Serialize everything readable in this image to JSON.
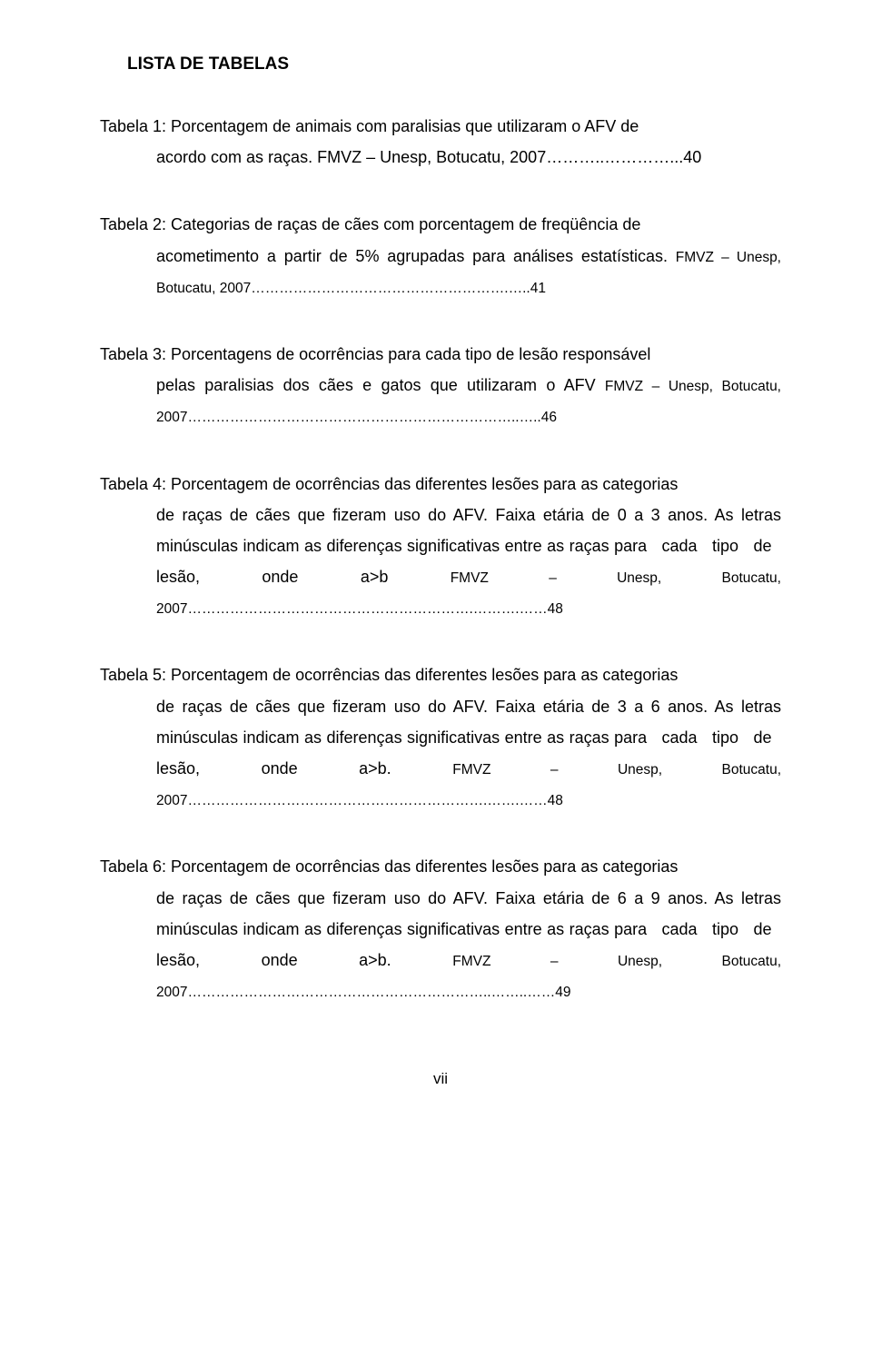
{
  "title": "LISTA DE TABELAS",
  "entries": {
    "t1": {
      "first": "Tabela 1: Porcentagem de animais com paralisias que utilizaram o AFV de",
      "cont": "acordo com as raças. FMVZ – Unesp, Botucatu, 2007………..…………...40"
    },
    "t2": {
      "first": "Tabela 2: Categorias de raças de cães com porcentagem de freqüência de",
      "cont_a": "acometimento a partir de 5% agrupadas para análises estatísticas.",
      "cont_b": "FMVZ – Unesp, Botucatu, 2007……………………………………………….…..41"
    },
    "t3": {
      "first": "Tabela 3: Porcentagens de ocorrências para cada tipo de lesão responsável",
      "cont_a": "pelas paralisias dos cães e gatos que utilizaram o AFV ",
      "cont_b": "FMVZ – Unesp, Botucatu, 2007……………………………………………………………..…..46"
    },
    "t4": {
      "first": "Tabela 4: Porcentagem de ocorrências das diferentes lesões para as categorias",
      "cont_a": "de raças de cães que fizeram uso do AFV. Faixa etária de 0 a 3 anos. As letras minúsculas indicam as diferenças significativas entre as raças para   cada   tipo   de   lesão,   onde   a>b   ",
      "cont_b": "FMVZ   –   Unesp,   Botucatu, 2007…………………………………………………….……….……48"
    },
    "t5": {
      "first": "Tabela 5: Porcentagem de ocorrências das diferentes lesões para as categorias",
      "cont_a": "de raças de cães que fizeram uso do AFV. Faixa etária de 3 a 6 anos. As letras minúsculas indicam as diferenças significativas entre as raças para   cada   tipo   de   lesão,   onde   a>b.   ",
      "cont_b": "FMVZ   –   Unesp,   Botucatu, 2007……………………………………………………….…….……48"
    },
    "t6": {
      "first": "Tabela 6: Porcentagem de ocorrências das diferentes lesões para as categorias",
      "cont_a": "de raças de cães que fizeram uso do AFV. Faixa etária de 6 a 9 anos. As letras minúsculas indicam as diferenças significativas entre as raças para   cada   tipo   de   lesão,   onde   a>b.   ",
      "cont_b": "FMVZ   –   Unesp,   Botucatu, 2007………………………………………………………..……..……49"
    }
  },
  "pageNumber": "vii"
}
